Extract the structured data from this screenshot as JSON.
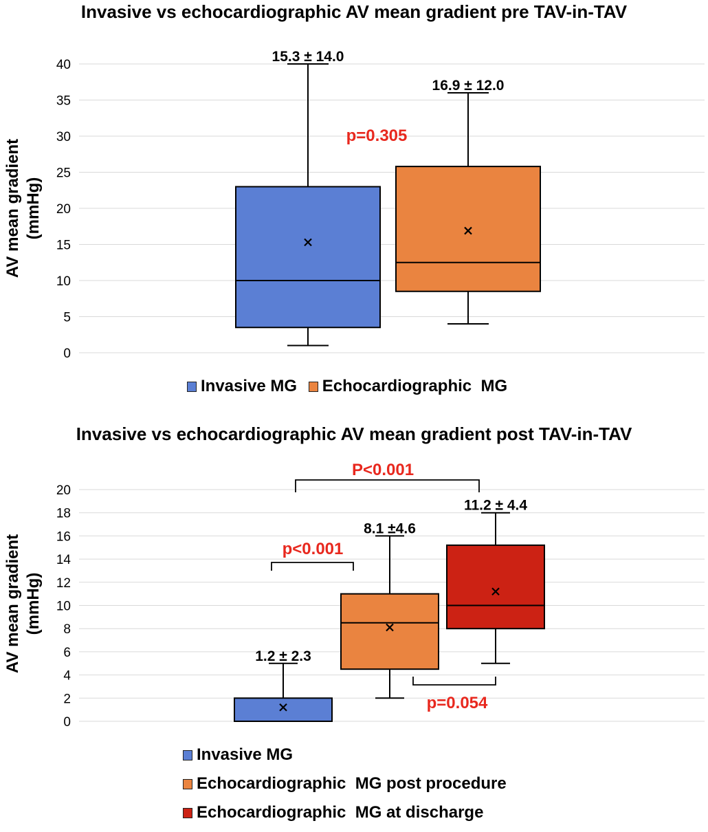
{
  "chart_data": [
    {
      "type": "box",
      "title": "Invasive vs echocardiographic AV mean gradient pre TAV-in-TAV",
      "ylabel": [
        "AV mean gradient",
        "(mmHg)"
      ],
      "ylim": [
        0,
        40
      ],
      "yticks": [
        0,
        5,
        10,
        15,
        20,
        25,
        30,
        35,
        40
      ],
      "grid": true,
      "legend_position": "bottom",
      "series": [
        {
          "name": "Invasive MG",
          "color": "#5b7fd4",
          "min": 1,
          "q1": 3.5,
          "median": 10,
          "q3": 23,
          "max": 40,
          "mean": 15.3,
          "label": "15.3 ± 14.0"
        },
        {
          "name": "Echocardiographic  MG",
          "color": "#ea8440",
          "min": 4,
          "q1": 8.5,
          "median": 12.5,
          "q3": 25.8,
          "max": 36,
          "mean": 16.9,
          "label": "16.9 ± 12.0"
        }
      ],
      "annotations": [
        {
          "text": "p=0.305",
          "color": "#e8281e"
        }
      ]
    },
    {
      "type": "box",
      "title": "Invasive vs echocardiographic AV mean gradient post TAV-in-TAV",
      "ylabel": [
        "AV mean gradient",
        "(mmHg)"
      ],
      "ylim": [
        0,
        20
      ],
      "yticks": [
        0,
        2,
        4,
        6,
        8,
        10,
        12,
        14,
        16,
        18,
        20
      ],
      "grid": true,
      "legend_position": "bottom",
      "series": [
        {
          "name": "Invasive MG",
          "color": "#5b7fd4",
          "min": 0,
          "q1": 0,
          "median": 0,
          "q3": 2,
          "max": 5,
          "mean": 1.2,
          "label": "1.2 ± 2.3"
        },
        {
          "name": "Echocardiographic  MG post procedure",
          "color": "#ea8440",
          "min": 2,
          "q1": 4.5,
          "median": 8.5,
          "q3": 11,
          "max": 16,
          "mean": 8.1,
          "label": "8.1 ±4.6"
        },
        {
          "name": "Echocardiographic  MG at discharge",
          "color": "#cc2214",
          "min": 5,
          "q1": 8,
          "median": 10,
          "q3": 15.2,
          "max": 18,
          "mean": 11.2,
          "label": "11.2 ± 4.4"
        }
      ],
      "annotations": [
        {
          "text": "P<0.001",
          "color": "#e8281e",
          "between": [
            0,
            2
          ]
        },
        {
          "text": "p<0.001",
          "color": "#e8281e",
          "between": [
            0,
            1
          ]
        },
        {
          "text": "p=0.054",
          "color": "#e8281e",
          "between": [
            1,
            2
          ]
        }
      ]
    }
  ]
}
